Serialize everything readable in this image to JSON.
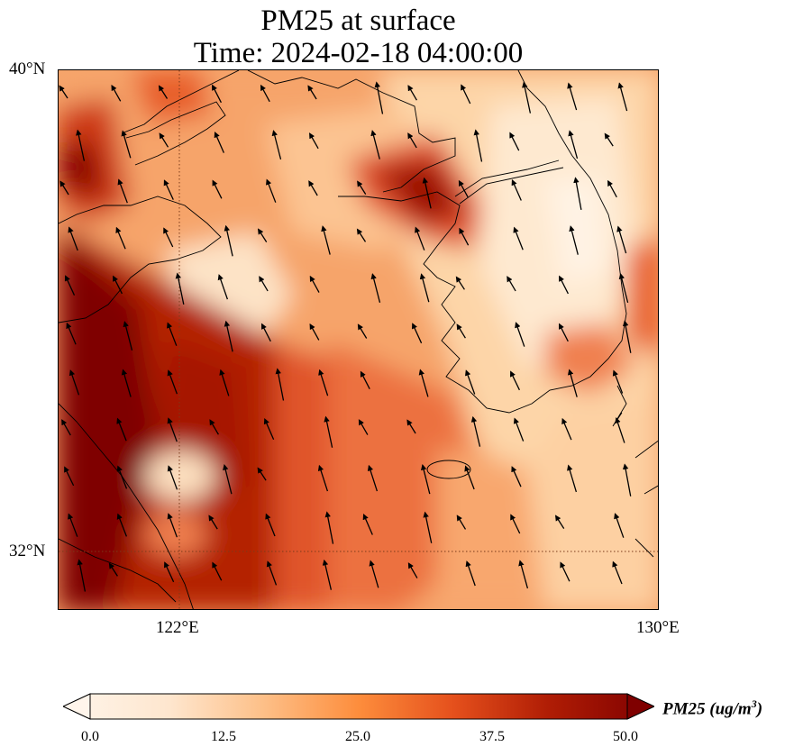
{
  "title": {
    "line1": "PM25 at surface",
    "line2": "Time: 2024-02-18 04:00:00"
  },
  "axes": {
    "lat_labels": [
      "40°N",
      "32°N"
    ],
    "lon_labels": [
      "122°E",
      "130°E"
    ],
    "gridlines": "dotted"
  },
  "colorbar": {
    "label_main": "PM25 (ug/m",
    "label_exp": "3",
    "label_close": ")",
    "ticks": [
      "0.0",
      "12.5",
      "25.0",
      "37.5",
      "50.0"
    ],
    "range": [
      0,
      50
    ],
    "extend": "both",
    "colormap": [
      "#fff5eb",
      "#fdd9b4",
      "#fda762",
      "#f3701b",
      "#c54102",
      "#8a0000",
      "#7f0000"
    ]
  },
  "map": {
    "extent": {
      "lon": [
        120,
        130
      ],
      "lat": [
        31,
        40
      ]
    },
    "features": [
      "coastline",
      "korean-peninsula",
      "jeju-island",
      "shandong-peninsula",
      "liaodong-peninsula",
      "wind-vectors"
    ]
  }
}
